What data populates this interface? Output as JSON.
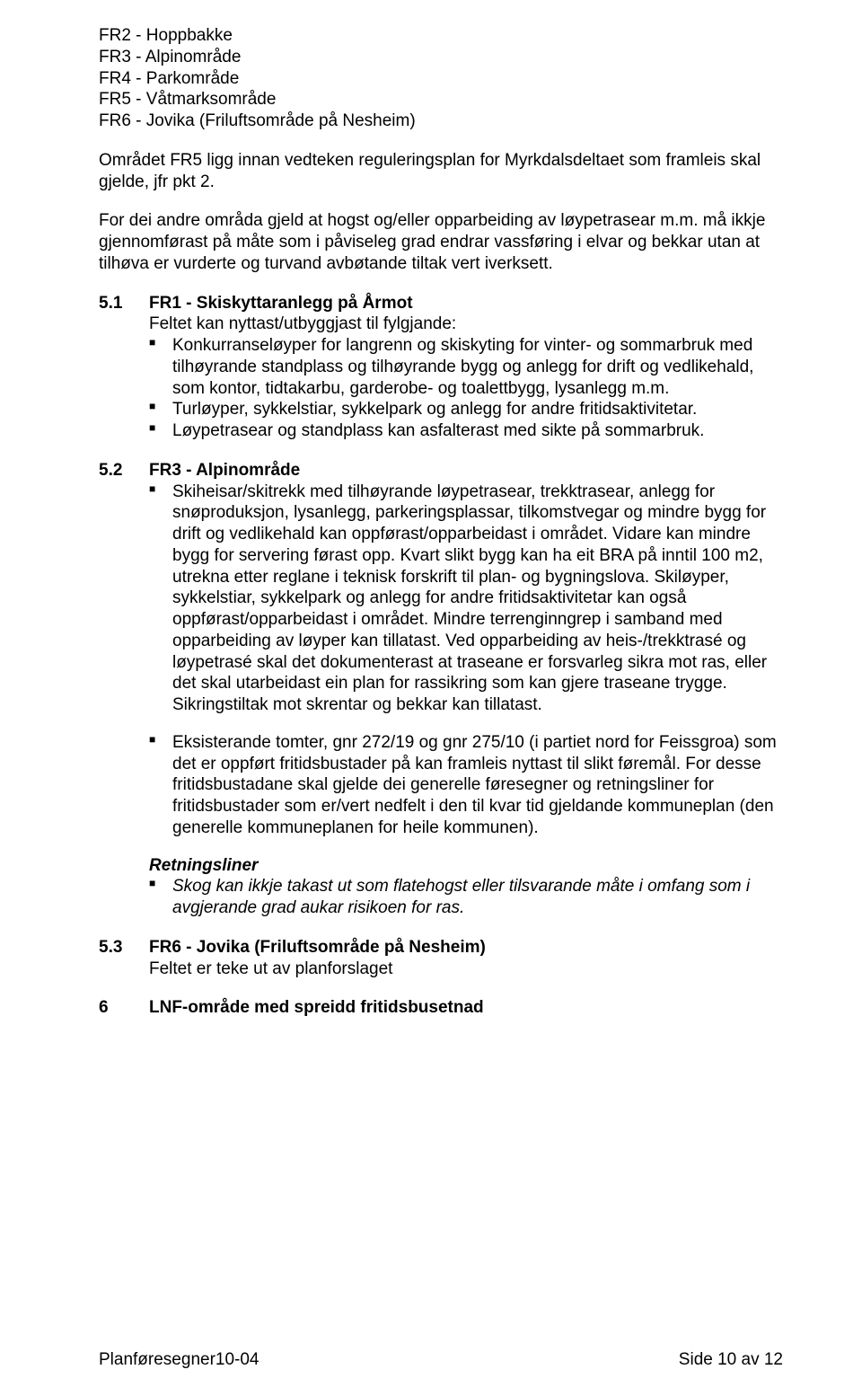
{
  "fr_list": {
    "l1": "FR2 - Hoppbakke",
    "l2": "FR3 - Alpinområde",
    "l3": "FR4 - Parkområde",
    "l4": "FR5 - Våtmarksområde",
    "l5": "FR6 - Jovika (Friluftsområde på Nesheim)"
  },
  "intro": {
    "p1": "Området FR5 ligg innan vedteken reguleringsplan for Myrkdalsdeltaet som framleis skal gjelde, jfr pkt 2.",
    "p2": "For dei andre områda gjeld at hogst og/eller opparbeiding av løypetrasear m.m. må ikkje gjennomførast på måte som i påviseleg grad endrar vassføring i elvar og bekkar utan at tilhøva er vurderte og turvand avbøtande tiltak vert iverksett."
  },
  "s51": {
    "num": "5.1",
    "title": "FR1 - Skiskyttaranlegg på Årmot",
    "lead": "Feltet kan nyttast/utbyggjast til fylgjande:",
    "b1": "Konkurranseløyper for langrenn og skiskyting for vinter- og sommarbruk med tilhøyrande standplass og tilhøyrande bygg og anlegg for drift og vedlikehald, som kontor, tidtakarbu, garderobe- og toalettbygg, lysanlegg m.m.",
    "b2": "Turløyper, sykkelstiar, sykkelpark og anlegg for andre fritidsaktivitetar.",
    "b3": "Løypetrasear og standplass kan asfalterast med sikte på sommarbruk."
  },
  "s52": {
    "num": "5.2",
    "title": "FR3 - Alpinområde",
    "b1": "Skiheisar/skitrekk med tilhøyrande løypetrasear, trekktrasear, anlegg for snøproduksjon, lysanlegg, parkeringsplassar, tilkomstvegar og mindre bygg for drift og vedlikehald kan oppførast/opparbeidast i området. Vidare kan mindre bygg for servering førast opp. Kvart slikt bygg kan ha eit BRA på inntil 100 m2, utrekna etter reglane i teknisk forskrift til plan- og bygningslova. Skiløyper, sykkelstiar, sykkelpark og anlegg for andre fritidsaktivitetar kan også oppførast/opparbeidast i området. Mindre terrenginngrep i samband med opparbeiding av løyper kan tillatast. Ved opparbeiding av heis-/trekktrasé og løypetrasé skal det dokumenterast at traseane er forsvarleg sikra mot ras, eller det skal utarbeidast ein plan for rassikring som kan gjere traseane trygge. Sikringstiltak mot skrentar og bekkar kan tillatast.",
    "b2": "Eksisterande tomter, gnr 272/19 og gnr 275/10 (i partiet nord for Feissgroa) som det er oppført fritidsbustader på kan framleis nyttast til slikt føremål. For desse fritidsbustadane skal gjelde dei generelle føresegner og retningsliner for fritidsbustader som er/vert nedfelt i den til kvar tid gjeldande kommuneplan (den generelle kommuneplanen for heile kommunen).",
    "retn_title": "Retningsliner",
    "r1": "Skog kan ikkje takast ut som flatehogst eller tilsvarande måte i omfang som i avgjerande grad aukar risikoen for ras."
  },
  "s53": {
    "num": "5.3",
    "title": "FR6 - Jovika (Friluftsområde på Nesheim)",
    "body": "Feltet er teke ut av planforslaget"
  },
  "s6": {
    "num": "6",
    "title": "LNF-område med spreidd fritidsbusetnad"
  },
  "footer": {
    "left": "Planføresegner10-04",
    "right": "Side 10 av 12"
  }
}
